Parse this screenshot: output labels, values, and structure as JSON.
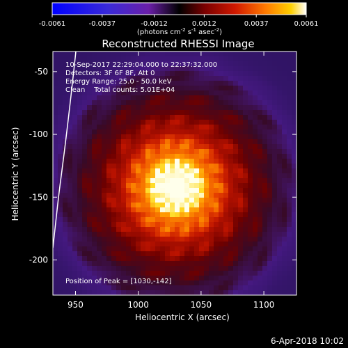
{
  "chart_data": {
    "type": "heatmap",
    "title": "Reconstructed RHESSI Image",
    "xlabel": "Heliocentric X (arcsec)",
    "ylabel": "Heliocentric Y (arcsec)",
    "xlim": [
      932,
      1126
    ],
    "ylim": [
      -228,
      -34
    ],
    "x_ticks": [
      950,
      1000,
      1050,
      1100
    ],
    "y_ticks": [
      -50,
      -100,
      -150,
      -200
    ],
    "x_tick_labels": [
      "950",
      "1000",
      "1050",
      "1100"
    ],
    "y_tick_labels": [
      "-50",
      "-100",
      "-150",
      "-200"
    ],
    "peak": [
      1030,
      -142
    ],
    "colorbar": {
      "min": -0.0061,
      "max": 0.0061,
      "ticks": [
        -0.0061,
        -0.0037,
        -0.0012,
        0.0012,
        0.0037,
        0.0061
      ],
      "tick_labels": [
        "-0.0061",
        "-0.0037",
        "-0.0012",
        "0.0012",
        "0.0037",
        "0.0061"
      ],
      "unit_pre": "(photons cm",
      "unit_exp1": "-2",
      "unit_mid": " s",
      "unit_exp2": "-1",
      "unit_mid2": " asec",
      "unit_exp3": "-2",
      "unit_post": ")"
    },
    "annotations": {
      "time_range": "10-Sep-2017 22:29:04.000 to 22:37:32.000",
      "detectors": "Detectors: 3F 6F 8F, Att 0",
      "energy": "Energy Range: 25.0 - 50.0 keV",
      "clean": "Clean    Total counts: 5.01E+04",
      "peak_text": "Position of Peak = [1030,-142]"
    },
    "footer_date": "6-Apr-2018 10:02",
    "colors": {
      "background": "#000000",
      "limb": "#ffffff"
    }
  }
}
